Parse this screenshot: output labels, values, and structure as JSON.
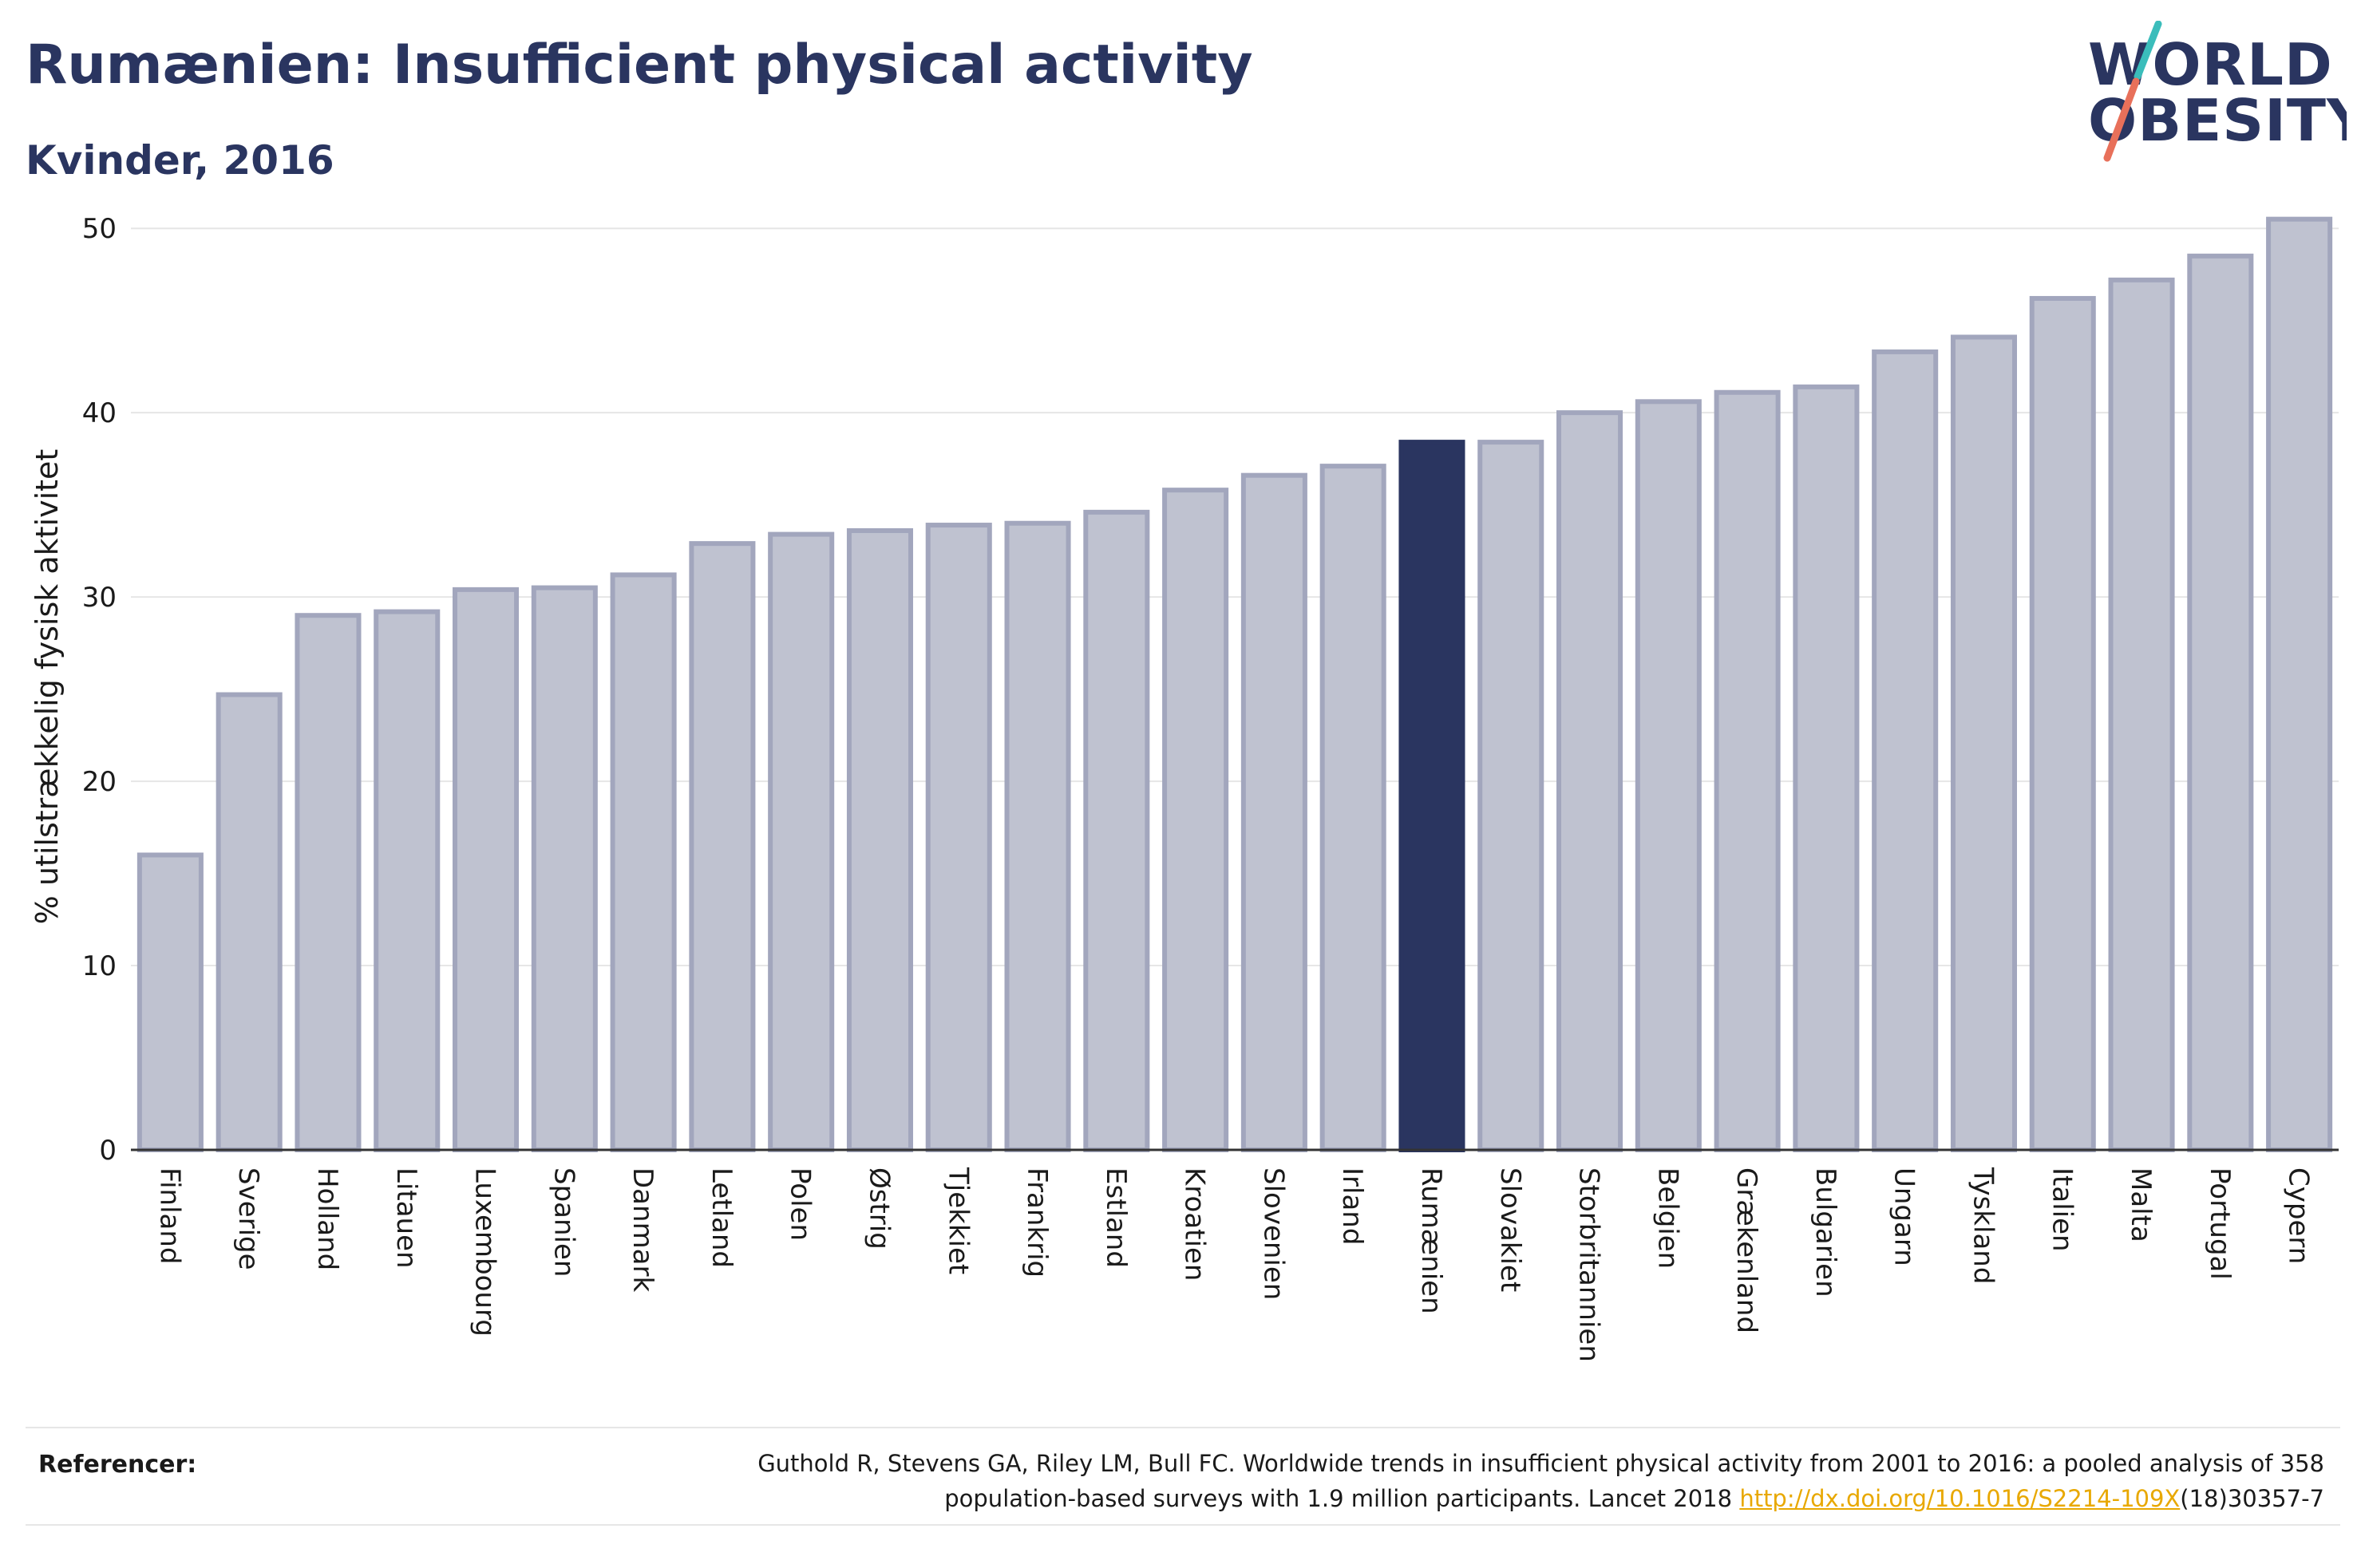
{
  "header": {
    "title": "Rumænien: Insufficient physical activity",
    "subtitle": "Kvinder, 2016"
  },
  "logo": {
    "line1": "WORLD",
    "line2": "OBESITY"
  },
  "chart_data": {
    "type": "bar",
    "title": "Rumænien: Insufficient physical activity",
    "subtitle": "Kvinder, 2016",
    "xlabel": "",
    "ylabel": "% utilstrækkelig fysisk aktivitet",
    "ylim": [
      0,
      52
    ],
    "yticks": [
      0,
      10,
      20,
      30,
      40,
      50
    ],
    "grid": true,
    "highlight": "Rumænien",
    "colors": {
      "bar": "#bfc2d0",
      "bar_stroke": "#a2a6bd",
      "highlight": "#2a3560",
      "grid": "#e6e6e6",
      "axis": "#333333"
    },
    "categories": [
      "Finland",
      "Sverige",
      "Holland",
      "Litauen",
      "Luxembourg",
      "Spanien",
      "Danmark",
      "Letland",
      "Polen",
      "Østrig",
      "Tjekkiet",
      "Frankrig",
      "Estland",
      "Kroatien",
      "Slovenien",
      "Irland",
      "Rumænien",
      "Slovakiet",
      "Storbritannien",
      "Belgien",
      "Grækenland",
      "Bulgarien",
      "Ungarn",
      "Tyskland",
      "Italien",
      "Malta",
      "Portugal",
      "Cypern"
    ],
    "values": [
      16.0,
      24.7,
      29.0,
      29.2,
      30.4,
      30.5,
      31.2,
      32.9,
      33.4,
      33.6,
      33.9,
      34.0,
      34.6,
      35.8,
      36.6,
      37.1,
      38.4,
      38.4,
      40.0,
      40.6,
      41.1,
      41.4,
      43.3,
      44.1,
      46.2,
      47.2,
      48.5,
      50.5
    ]
  },
  "references": {
    "label": "Referencer:",
    "line1": "Guthold R, Stevens GA, Riley LM, Bull FC. Worldwide trends in insufficient physical activity from 2001 to 2016: a pooled analysis of 358",
    "line2_pre": "population-based surveys with 1.9 million participants. Lancet 2018 ",
    "link": "http://dx.doi.org/10.1016/S2214-109X",
    "line2_post": "(18)30357-7"
  }
}
